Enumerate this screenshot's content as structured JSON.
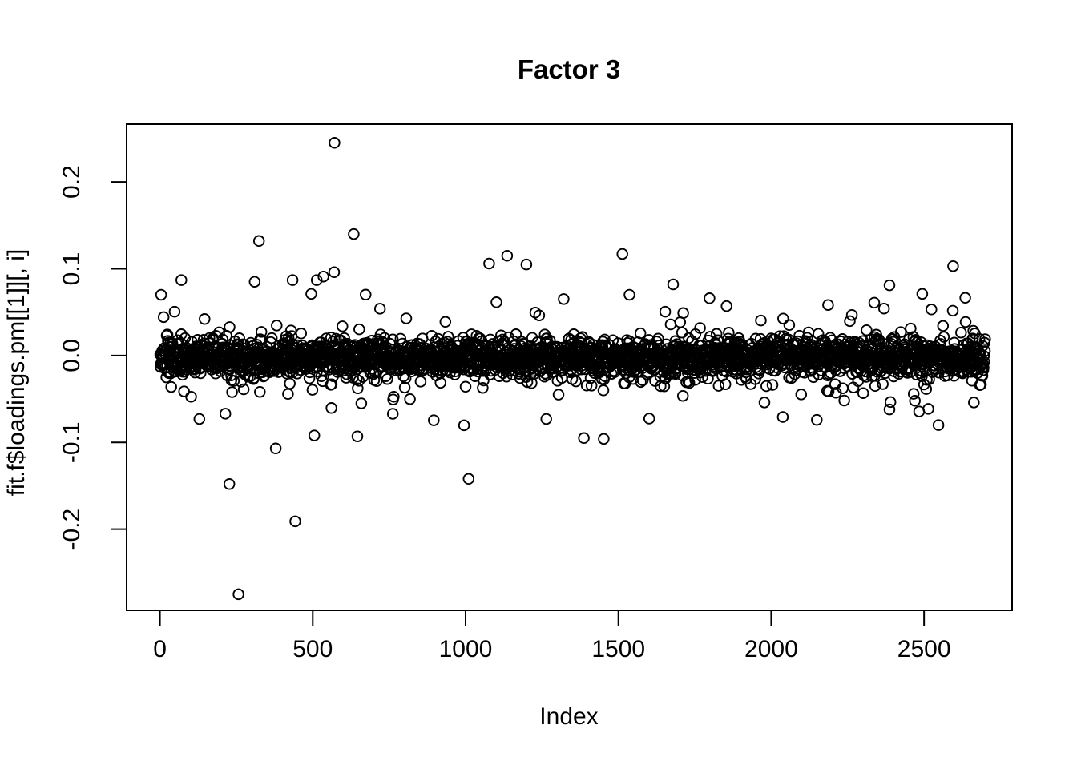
{
  "chart_data": {
    "type": "scatter",
    "title": "Factor 3",
    "xlabel": "Index",
    "ylabel": "fit.f$loadings.pm[[1]][, i]",
    "marker": "open-circle",
    "point_color": "#000000",
    "background_color": "#ffffff",
    "grid": false,
    "legend": false,
    "x_ticks": [
      {
        "v": 0,
        "label": "0"
      },
      {
        "v": 500,
        "label": "500"
      },
      {
        "v": 1000,
        "label": "1000"
      },
      {
        "v": 1500,
        "label": "1500"
      },
      {
        "v": 2000,
        "label": "2000"
      },
      {
        "v": 2500,
        "label": "2500"
      }
    ],
    "y_ticks": [
      {
        "v": -0.2,
        "label": "-0.2"
      },
      {
        "v": -0.1,
        "label": "-0.1"
      },
      {
        "v": 0.0,
        "label": "0.0"
      },
      {
        "v": 0.1,
        "label": "0.1"
      },
      {
        "v": 0.2,
        "label": "0.2"
      }
    ],
    "xlim": [
      -109,
      2788
    ],
    "ylim": [
      -0.2935,
      0.2665
    ],
    "n_points": 2700,
    "band": {
      "description": "dense horizontal band of open circles centered just below 0",
      "mean": -0.0025,
      "sd_core": 0.0105,
      "sd_mid": 0.02,
      "sd_tail": 0.038,
      "weights": [
        0.82,
        0.14,
        0.04
      ],
      "clip": [
        -0.095,
        0.075
      ],
      "seed": 7
    },
    "outliers": [
      [
        571,
        0.245
      ],
      [
        634,
        0.14
      ],
      [
        324,
        0.132
      ],
      [
        1513,
        0.117
      ],
      [
        1136,
        0.115
      ],
      [
        1077,
        0.106
      ],
      [
        1199,
        0.105
      ],
      [
        2595,
        0.103
      ],
      [
        570,
        0.096
      ],
      [
        535,
        0.091
      ],
      [
        513,
        0.087
      ],
      [
        434,
        0.087
      ],
      [
        70,
        0.087
      ],
      [
        310,
        0.085
      ],
      [
        1679,
        0.082
      ],
      [
        2387,
        0.081
      ],
      [
        2494,
        0.071
      ],
      [
        495,
        0.071
      ],
      [
        4,
        0.07
      ],
      [
        1798,
        0.066
      ],
      [
        1321,
        0.065
      ],
      [
        1854,
        0.057
      ],
      [
        257,
        -0.275
      ],
      [
        443,
        -0.191
      ],
      [
        227,
        -0.148
      ],
      [
        1010,
        -0.142
      ],
      [
        379,
        -0.107
      ],
      [
        1452,
        -0.096
      ],
      [
        1387,
        -0.095
      ],
      [
        646,
        -0.093
      ],
      [
        505,
        -0.092
      ],
      [
        2547,
        -0.08
      ],
      [
        2149,
        -0.074
      ],
      [
        1264,
        -0.073
      ],
      [
        129,
        -0.073
      ],
      [
        762,
        -0.067
      ],
      [
        2387,
        -0.062
      ],
      [
        659,
        -0.055
      ],
      [
        1978,
        -0.054
      ],
      [
        2663,
        -0.054
      ],
      [
        2466,
        -0.044
      ]
    ]
  }
}
